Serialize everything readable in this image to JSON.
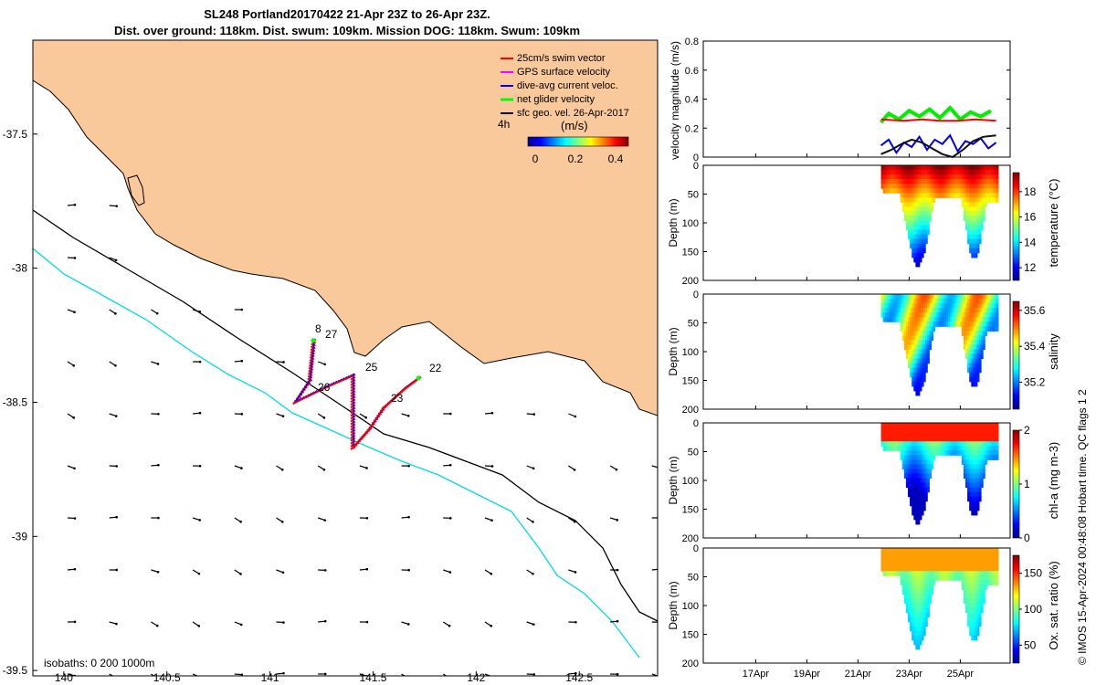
{
  "title": {
    "line1": "SL248 Portland20170422 21-Apr 23Z to 26-Apr 23Z.",
    "line2": "Dist. over ground: 118km. Dist. swum: 109km. Mission DOG: 118km. Swum: 109km"
  },
  "footer": "© IMOS 15-Apr-2024 00:48:08 Hobart time. QC flags 1  2",
  "colors": {
    "land": "#f9c89b",
    "isobath_0": "#000000",
    "isobath_200": "#000000",
    "isobath_1000": "#00dddd",
    "swim_vector": "#ff0000",
    "gps_velocity": "#ff00ff",
    "dive_avg": "#0000ff",
    "net_velocity": "#00ff00",
    "sfc_geo": "#000000"
  },
  "chart_data": [
    {
      "type": "map",
      "xticks": [
        "140",
        "140.5",
        "141",
        "141.5",
        "142",
        "142.5"
      ],
      "yticks": [
        "-37.5",
        "-38",
        "-38.5",
        "-39",
        "-39.5"
      ],
      "xlim": [
        139.85,
        142.88
      ],
      "ylim": [
        -39.52,
        -37.15
      ],
      "legend": {
        "placement": "top-right",
        "entries": [
          {
            "label": "25cm/s swim vector",
            "color": "#ff0000"
          },
          {
            "label": "GPS surface velocity",
            "color": "#ff00ff"
          },
          {
            "label": "dive-avg current veloc.",
            "color": "#0000ff"
          },
          {
            "label": "net glider velocity",
            "color": "#00ff00"
          },
          {
            "label": "sfc geo. vel. 26-Apr-2017",
            "color": "#000000"
          }
        ]
      },
      "colorbar": {
        "label": "(m/s)",
        "ticks": [
          "0",
          "0.2",
          "0.4"
        ],
        "range": [
          0,
          0.5
        ]
      },
      "corner_label": "4h",
      "isobath_label": "isobaths: 0   200  1000m",
      "track_labels": [
        "8",
        "27",
        "25",
        "26",
        "23",
        "22"
      ],
      "track": [
        [
          141.21,
          -38.27
        ],
        [
          141.19,
          -38.42
        ],
        [
          141.12,
          -38.5
        ],
        [
          141.28,
          -38.44
        ],
        [
          141.4,
          -38.4
        ],
        [
          141.4,
          -38.67
        ],
        [
          141.48,
          -38.6
        ],
        [
          141.55,
          -38.52
        ],
        [
          141.65,
          -38.45
        ],
        [
          141.72,
          -38.41
        ]
      ]
    },
    {
      "type": "line",
      "ylabel": "velocity magnitude (m/s)",
      "ylim": [
        0,
        0.8
      ],
      "yticks": [
        "0",
        "0.2",
        "0.4",
        "0.6",
        "0.8"
      ],
      "xticks": [
        "17Apr",
        "19Apr",
        "21Apr",
        "23Apr",
        "25Apr"
      ],
      "series": [
        {
          "color": "#00ee00",
          "x": [
            21.9,
            22.2,
            22.6,
            23.0,
            23.4,
            23.8,
            24.2,
            24.6,
            25.0,
            25.4,
            25.8,
            26.2
          ],
          "y": [
            0.24,
            0.3,
            0.26,
            0.32,
            0.28,
            0.33,
            0.27,
            0.34,
            0.26,
            0.31,
            0.28,
            0.32
          ]
        },
        {
          "color": "#0000ee",
          "x": [
            21.9,
            22.2,
            22.5,
            22.8,
            23.1,
            23.4,
            23.7,
            24.0,
            24.3,
            24.6,
            24.9,
            25.2,
            25.5,
            25.8,
            26.1,
            26.4
          ],
          "y": [
            0.08,
            0.12,
            0.03,
            0.1,
            0.07,
            0.14,
            0.05,
            0.12,
            0.09,
            0.15,
            0.04,
            0.11,
            0.09,
            0.13,
            0.06,
            0.1
          ]
        },
        {
          "color": "#ff0000",
          "x": [
            21.9,
            22.8,
            23.5,
            24.2,
            24.9,
            25.6,
            26.4
          ],
          "y": [
            0.26,
            0.25,
            0.26,
            0.25,
            0.25,
            0.26,
            0.25
          ]
        },
        {
          "color": "#111111",
          "x": [
            21.9,
            22.3,
            22.7,
            23.1,
            23.5,
            23.9,
            24.3,
            24.7,
            25.1,
            25.5,
            25.9,
            26.4
          ],
          "y": [
            0.02,
            0.05,
            0.09,
            0.12,
            0.1,
            0.06,
            0.02,
            0.0,
            0.05,
            0.11,
            0.14,
            0.15
          ]
        }
      ]
    },
    {
      "type": "heatmap",
      "ylabel": "Depth (m)",
      "yticks": [
        "0",
        "50",
        "100",
        "150",
        "200"
      ],
      "colorbar_label": "temperature (°C)",
      "colorbar_ticks": [
        "12",
        "14",
        "16",
        "18"
      ],
      "range": [
        11,
        19.5
      ]
    },
    {
      "type": "heatmap",
      "ylabel": "Depth (m)",
      "yticks": [
        "0",
        "50",
        "100",
        "150",
        "200"
      ],
      "colorbar_label": "salinity",
      "colorbar_ticks": [
        "35.2",
        "35.4",
        "35.6"
      ],
      "range": [
        35.05,
        35.65
      ]
    },
    {
      "type": "heatmap",
      "ylabel": "Depth (m)",
      "yticks": [
        "0",
        "50",
        "100",
        "150",
        "200"
      ],
      "colorbar_label": "chl-a (mg m-3)",
      "colorbar_ticks": [
        "0",
        "1",
        "2"
      ],
      "range": [
        0,
        2
      ]
    },
    {
      "type": "heatmap",
      "ylabel": "Depth (m)",
      "yticks": [
        "0",
        "50",
        "100",
        "150",
        "200"
      ],
      "colorbar_label": "Ox. sat. ratio (%)",
      "colorbar_ticks": [
        "50",
        "100",
        "150"
      ],
      "range": [
        25,
        175
      ]
    }
  ]
}
